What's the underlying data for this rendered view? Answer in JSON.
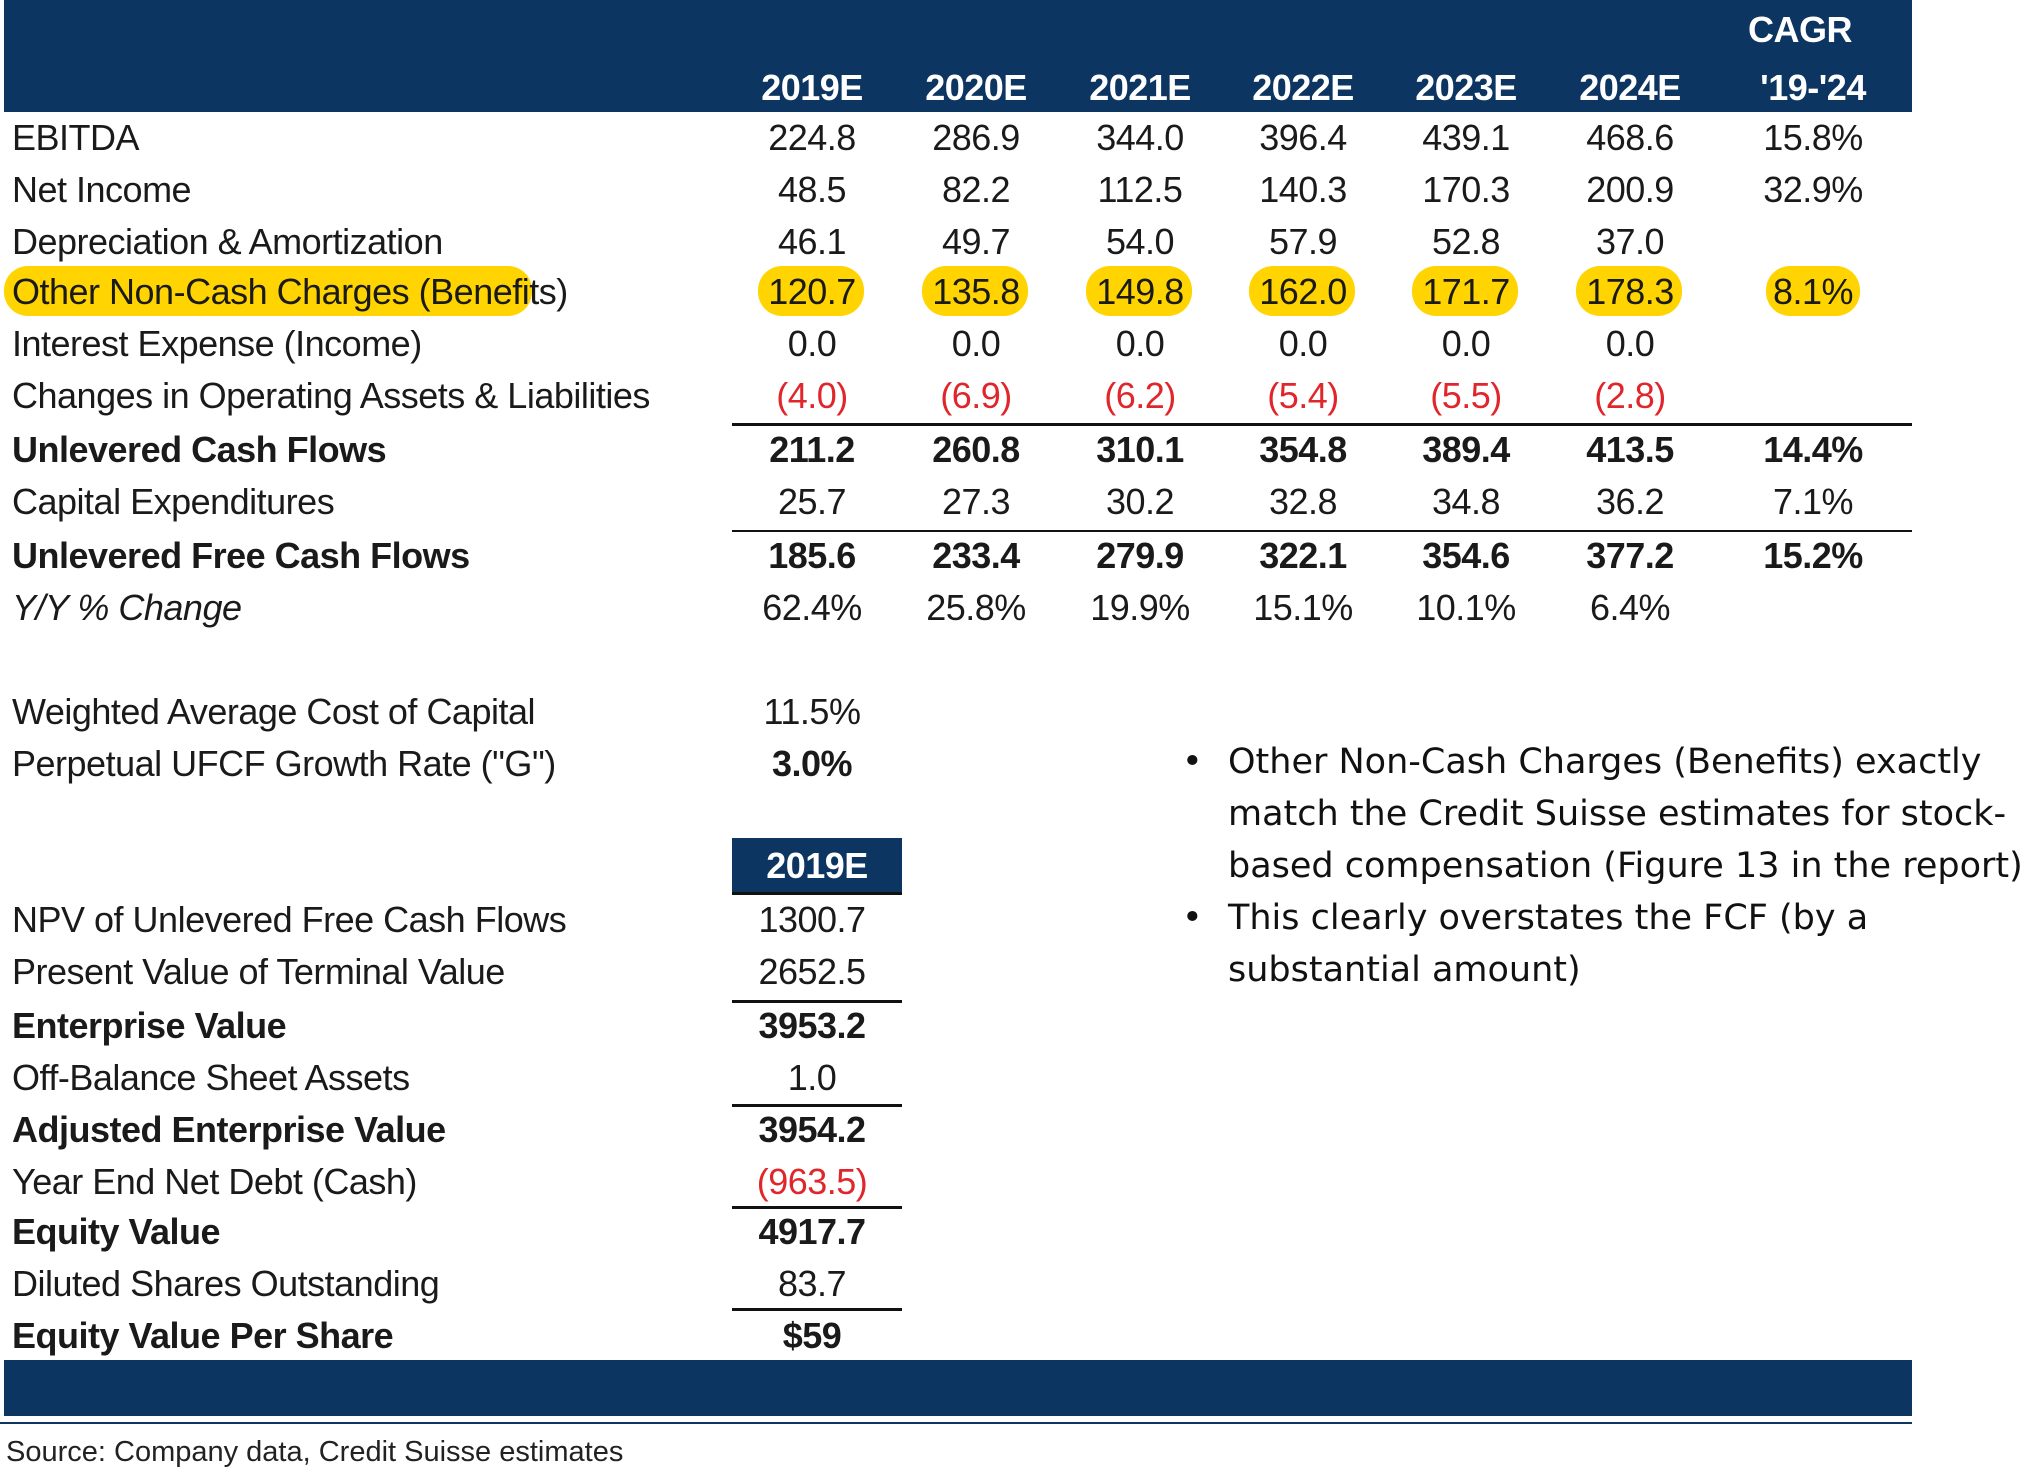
{
  "colors": {
    "header_bg": "#0d3562",
    "highlight": "#ffd400",
    "negative": "#e0262b"
  },
  "header": {
    "years": [
      "2019E",
      "2020E",
      "2021E",
      "2022E",
      "2023E",
      "2024E"
    ],
    "cagr_line1": "CAGR",
    "cagr_line2": "'19-'24"
  },
  "rows": [
    {
      "label": "EBITDA",
      "values": [
        "224.8",
        "286.9",
        "344.0",
        "396.4",
        "439.1",
        "468.6"
      ],
      "cagr": "15.8%"
    },
    {
      "label": "Net Income",
      "values": [
        "48.5",
        "82.2",
        "112.5",
        "140.3",
        "170.3",
        "200.9"
      ],
      "cagr": "32.9%"
    },
    {
      "label": "Depreciation & Amortization",
      "values": [
        "46.1",
        "49.7",
        "54.0",
        "57.9",
        "52.8",
        "37.0"
      ],
      "cagr": ""
    },
    {
      "label": "Other Non-Cash Charges (Benefits)",
      "values": [
        "120.7",
        "135.8",
        "149.8",
        "162.0",
        "171.7",
        "178.3"
      ],
      "cagr": "8.1%"
    },
    {
      "label": "Interest Expense (Income)",
      "values": [
        "0.0",
        "0.0",
        "0.0",
        "0.0",
        "0.0",
        "0.0"
      ],
      "cagr": ""
    },
    {
      "label": "Changes in Operating Assets & Liabilities",
      "values": [
        "(4.0)",
        "(6.9)",
        "(6.2)",
        "(5.4)",
        "(5.5)",
        "(2.8)"
      ],
      "cagr": ""
    },
    {
      "label": "Unlevered Cash Flows",
      "values": [
        "211.2",
        "260.8",
        "310.1",
        "354.8",
        "389.4",
        "413.5"
      ],
      "cagr": "14.4%"
    },
    {
      "label": "Capital Expenditures",
      "values": [
        "25.7",
        "27.3",
        "30.2",
        "32.8",
        "34.8",
        "36.2"
      ],
      "cagr": "7.1%"
    },
    {
      "label": "Unlevered Free Cash Flows",
      "values": [
        "185.6",
        "233.4",
        "279.9",
        "322.1",
        "354.6",
        "377.2"
      ],
      "cagr": "15.2%"
    },
    {
      "label": "Y/Y % Change",
      "values": [
        "62.4%",
        "25.8%",
        "19.9%",
        "15.1%",
        "10.1%",
        "6.4%"
      ],
      "cagr": ""
    }
  ],
  "assumptions": [
    {
      "label": "Weighted Average Cost of Capital",
      "value": "11.5%"
    },
    {
      "label": "Perpetual UFCF Growth Rate (\"G\")",
      "value": "3.0%"
    }
  ],
  "valuation": {
    "header": "2019E",
    "rows": [
      {
        "label": "NPV of Unlevered Free Cash Flows",
        "value": "1300.7"
      },
      {
        "label": "Present Value of Terminal Value",
        "value": "2652.5"
      },
      {
        "label": "Enterprise Value",
        "value": "3953.2"
      },
      {
        "label": "Off-Balance Sheet Assets",
        "value": "1.0"
      },
      {
        "label": "Adjusted Enterprise Value",
        "value": "3954.2"
      },
      {
        "label": "Year End  Net Debt (Cash)",
        "value": "(963.5)"
      },
      {
        "label": "Equity Value",
        "value": "4917.7"
      },
      {
        "label": "Diluted Shares Outstanding",
        "value": "83.7"
      },
      {
        "label": "Equity Value Per Share",
        "value": "$59"
      }
    ]
  },
  "notes": [
    {
      "bullet": "•",
      "text": "Other Non-Cash Charges (Benefits) exactly match the Credit Suisse estimates for stock-based compensation (Figure 13 in the report)"
    },
    {
      "bullet": "•",
      "text": "This clearly overstates the FCF (by a substantial amount)"
    }
  ],
  "source": "Source: Company data, Credit Suisse estimates"
}
